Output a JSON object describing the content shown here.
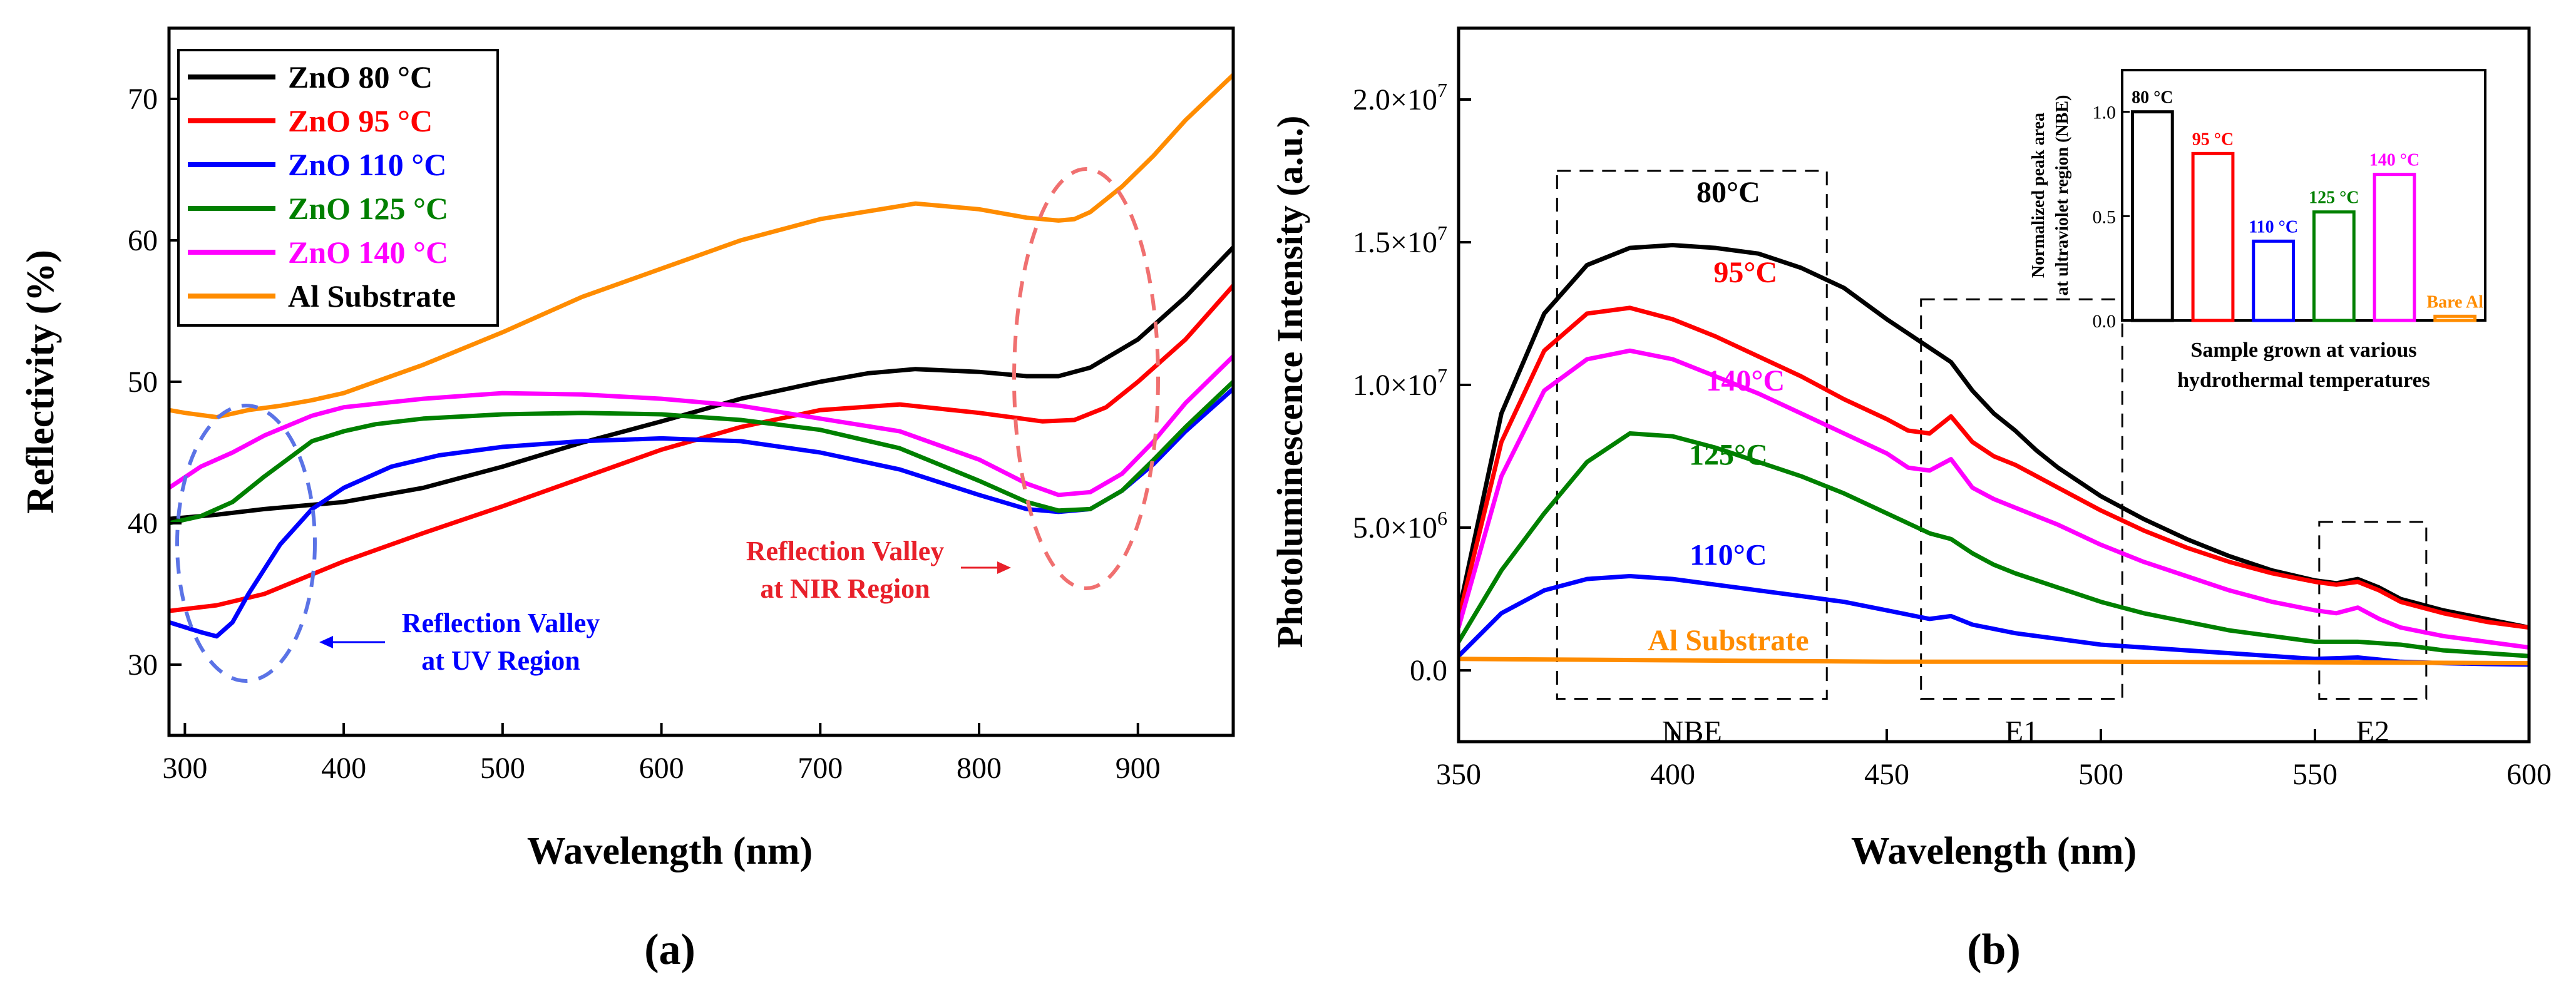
{
  "figure": {
    "panel_a_caption": "(a)",
    "panel_b_caption": "(b)"
  },
  "chart_data": [
    {
      "id": "a",
      "type": "line",
      "title": "",
      "xlabel": "Wavelength (nm)",
      "ylabel": "Reflectivity (%)",
      "xlim": [
        290,
        960
      ],
      "ylim": [
        25,
        75
      ],
      "xticks": [
        300,
        400,
        500,
        600,
        700,
        800,
        900
      ],
      "yticks": [
        30,
        40,
        50,
        60,
        70
      ],
      "grid": false,
      "legend_position": "top-left",
      "series": [
        {
          "name": "ZnO 80 °C",
          "color": "#000000",
          "x": [
            290,
            320,
            350,
            400,
            450,
            500,
            550,
            600,
            650,
            700,
            730,
            760,
            800,
            830,
            850,
            870,
            900,
            930,
            960
          ],
          "y": [
            40.3,
            40.6,
            41.0,
            41.5,
            42.5,
            44.0,
            45.7,
            47.2,
            48.8,
            50.0,
            50.6,
            50.9,
            50.7,
            50.4,
            50.4,
            51.0,
            53.0,
            56.0,
            59.5
          ]
        },
        {
          "name": "ZnO 95 °C",
          "color": "#ff0000",
          "x": [
            290,
            320,
            350,
            400,
            450,
            500,
            550,
            600,
            650,
            700,
            750,
            800,
            840,
            860,
            880,
            900,
            930,
            960
          ],
          "y": [
            33.8,
            34.2,
            35.0,
            37.3,
            39.3,
            41.2,
            43.2,
            45.2,
            46.8,
            48.0,
            48.4,
            47.8,
            47.2,
            47.3,
            48.2,
            50.0,
            53.0,
            56.8
          ]
        },
        {
          "name": "ZnO 110 °C",
          "color": "#0000ff",
          "x": [
            290,
            310,
            320,
            330,
            340,
            360,
            380,
            400,
            430,
            460,
            500,
            550,
            600,
            650,
            700,
            750,
            800,
            830,
            850,
            870,
            890,
            910,
            930,
            960
          ],
          "y": [
            33.0,
            32.3,
            32.0,
            33.0,
            35.0,
            38.5,
            41.0,
            42.5,
            44.0,
            44.8,
            45.4,
            45.8,
            46.0,
            45.8,
            45.0,
            43.8,
            42.0,
            41.0,
            40.8,
            41.0,
            42.3,
            44.2,
            46.5,
            49.5
          ]
        },
        {
          "name": "ZnO 125 °C",
          "color": "#008000",
          "x": [
            290,
            310,
            330,
            350,
            380,
            400,
            420,
            450,
            500,
            550,
            600,
            650,
            700,
            750,
            800,
            830,
            850,
            870,
            890,
            910,
            930,
            960
          ],
          "y": [
            40.0,
            40.5,
            41.5,
            43.3,
            45.8,
            46.5,
            47.0,
            47.4,
            47.7,
            47.8,
            47.7,
            47.3,
            46.6,
            45.3,
            43.0,
            41.5,
            40.9,
            41.0,
            42.3,
            44.5,
            46.8,
            50.0
          ]
        },
        {
          "name": "ZnO 140 °C",
          "color": "#ff00ff",
          "x": [
            290,
            310,
            330,
            350,
            380,
            400,
            450,
            500,
            550,
            600,
            650,
            700,
            750,
            800,
            830,
            850,
            870,
            890,
            910,
            930,
            960
          ],
          "y": [
            42.5,
            44.0,
            45.0,
            46.2,
            47.6,
            48.2,
            48.8,
            49.2,
            49.1,
            48.8,
            48.3,
            47.4,
            46.5,
            44.5,
            42.8,
            42.0,
            42.2,
            43.5,
            45.8,
            48.5,
            51.8
          ]
        },
        {
          "name": "Al Substrate",
          "color": "#ff8c00",
          "x": [
            290,
            300,
            320,
            340,
            360,
            380,
            400,
            450,
            500,
            550,
            600,
            650,
            700,
            760,
            800,
            830,
            850,
            860,
            870,
            890,
            910,
            930,
            960
          ],
          "y": [
            48.0,
            47.8,
            47.5,
            48.0,
            48.3,
            48.7,
            49.2,
            51.2,
            53.5,
            56.0,
            58.0,
            60.0,
            61.5,
            62.6,
            62.2,
            61.6,
            61.4,
            61.5,
            62.0,
            63.8,
            66.0,
            68.5,
            71.7
          ]
        }
      ],
      "annotations": [
        {
          "label": "uv-valley",
          "text": [
            "Reflection Valley",
            "at UV Region"
          ],
          "color": "#0000ff"
        },
        {
          "label": "nir-valley",
          "text": [
            "Reflection Valley",
            "at NIR Region"
          ],
          "color": "#e8202a"
        }
      ]
    },
    {
      "id": "b",
      "type": "line",
      "title": "",
      "xlabel": "Wavelength (nm)",
      "ylabel": "Photoluminescence Intensity (a.u.)",
      "xlim": [
        350,
        600
      ],
      "ylim": [
        -2500000,
        22500000
      ],
      "xticks": [
        350,
        400,
        450,
        500,
        550,
        600
      ],
      "ytick_values": [
        0,
        5000000,
        10000000,
        15000000,
        20000000
      ],
      "ytick_labels": [
        {
          "mant": "0.0",
          "exp": ""
        },
        {
          "mant": "5.0×10",
          "exp": "6"
        },
        {
          "mant": "1.0×10",
          "exp": "7"
        },
        {
          "mant": "1.5×10",
          "exp": "7"
        },
        {
          "mant": "2.0×10",
          "exp": "7"
        }
      ],
      "grid": false,
      "series": [
        {
          "name": "80°C",
          "color": "#000000",
          "x": [
            350,
            360,
            370,
            380,
            390,
            400,
            410,
            420,
            430,
            440,
            450,
            455,
            460,
            465,
            470,
            475,
            480,
            485,
            490,
            500,
            510,
            520,
            530,
            540,
            550,
            555,
            560,
            565,
            570,
            580,
            590,
            600
          ],
          "y": [
            2000000,
            9000000,
            12500000,
            14200000,
            14800000,
            14900000,
            14800000,
            14600000,
            14100000,
            13400000,
            12300000,
            11800000,
            11300000,
            10800000,
            9800000,
            9000000,
            8400000,
            7700000,
            7100000,
            6100000,
            5300000,
            4600000,
            4000000,
            3500000,
            3150000,
            3050000,
            3200000,
            2900000,
            2500000,
            2100000,
            1800000,
            1500000
          ]
        },
        {
          "name": "95°C",
          "color": "#ff0000",
          "x": [
            350,
            360,
            370,
            380,
            390,
            400,
            410,
            420,
            430,
            440,
            450,
            455,
            460,
            465,
            470,
            475,
            480,
            485,
            490,
            500,
            510,
            520,
            530,
            540,
            550,
            555,
            560,
            565,
            570,
            580,
            590,
            600
          ],
          "y": [
            1800000,
            8000000,
            11200000,
            12500000,
            12700000,
            12300000,
            11700000,
            11000000,
            10300000,
            9500000,
            8800000,
            8400000,
            8300000,
            8900000,
            8000000,
            7500000,
            7200000,
            6800000,
            6400000,
            5600000,
            4900000,
            4300000,
            3800000,
            3400000,
            3100000,
            3000000,
            3100000,
            2800000,
            2400000,
            2000000,
            1700000,
            1500000
          ]
        },
        {
          "name": "140°C",
          "color": "#ff00ff",
          "x": [
            350,
            360,
            370,
            380,
            390,
            400,
            410,
            420,
            430,
            440,
            450,
            455,
            460,
            465,
            470,
            475,
            480,
            485,
            490,
            500,
            510,
            520,
            530,
            540,
            550,
            555,
            560,
            565,
            570,
            580,
            590,
            600
          ],
          "y": [
            1500000,
            6800000,
            9800000,
            10900000,
            11200000,
            10900000,
            10300000,
            9700000,
            9000000,
            8300000,
            7600000,
            7100000,
            7000000,
            7400000,
            6400000,
            6000000,
            5700000,
            5400000,
            5100000,
            4400000,
            3800000,
            3300000,
            2800000,
            2400000,
            2100000,
            2000000,
            2200000,
            1800000,
            1500000,
            1200000,
            1000000,
            800000
          ]
        },
        {
          "name": "125°C",
          "color": "#008000",
          "x": [
            350,
            360,
            370,
            380,
            390,
            400,
            410,
            420,
            430,
            440,
            450,
            460,
            465,
            470,
            475,
            480,
            490,
            500,
            510,
            520,
            530,
            540,
            550,
            560,
            570,
            580,
            590,
            600
          ],
          "y": [
            1000000,
            3500000,
            5500000,
            7300000,
            8300000,
            8200000,
            7800000,
            7300000,
            6800000,
            6200000,
            5500000,
            4800000,
            4600000,
            4100000,
            3700000,
            3400000,
            2900000,
            2400000,
            2000000,
            1700000,
            1400000,
            1200000,
            1000000,
            1000000,
            900000,
            700000,
            600000,
            500000
          ]
        },
        {
          "name": "110°C",
          "color": "#0000ff",
          "x": [
            350,
            360,
            370,
            380,
            390,
            400,
            410,
            420,
            430,
            440,
            450,
            460,
            465,
            470,
            480,
            490,
            500,
            510,
            520,
            530,
            540,
            550,
            560,
            570,
            580,
            590,
            600
          ],
          "y": [
            500000,
            2000000,
            2800000,
            3200000,
            3300000,
            3200000,
            3000000,
            2800000,
            2600000,
            2400000,
            2100000,
            1800000,
            1900000,
            1600000,
            1300000,
            1100000,
            900000,
            800000,
            700000,
            600000,
            500000,
            400000,
            450000,
            300000,
            250000,
            220000,
            200000
          ]
        },
        {
          "name": "Al Substrate",
          "color": "#ff8c00",
          "x": [
            350,
            400,
            450,
            500,
            550,
            600
          ],
          "y": [
            400000,
            350000,
            300000,
            300000,
            280000,
            250000
          ]
        }
      ],
      "region_boxes": [
        {
          "label": "NBE",
          "x_range": [
            373,
            436
          ],
          "y_range": [
            -1000000,
            17500000
          ]
        },
        {
          "label": "E1",
          "x_range": [
            458,
            505
          ],
          "y_range": [
            -1000000,
            13000000
          ]
        },
        {
          "label": "E2",
          "x_range": [
            551,
            576
          ],
          "y_range": [
            -1000000,
            5200000
          ]
        }
      ],
      "inset": {
        "type": "bar",
        "xlabel": [
          "Sample grown at various",
          "hydrothermal temperatures"
        ],
        "ylabel": [
          "Normalized peak area",
          "at ultraviolet region (NBE)"
        ],
        "ylim": [
          0,
          1.2
        ],
        "yticks": [
          "0.0",
          "0.5",
          "1.0"
        ],
        "categories": [
          "80 °C",
          "95 °C",
          "110 °C",
          "125 °C",
          "140 °C",
          "Bare Al"
        ],
        "values": [
          1.0,
          0.8,
          0.38,
          0.52,
          0.7,
          0.02
        ],
        "colors": [
          "#000000",
          "#ff0000",
          "#0000ff",
          "#008000",
          "#ff00ff",
          "#ff8c00"
        ]
      }
    }
  ]
}
